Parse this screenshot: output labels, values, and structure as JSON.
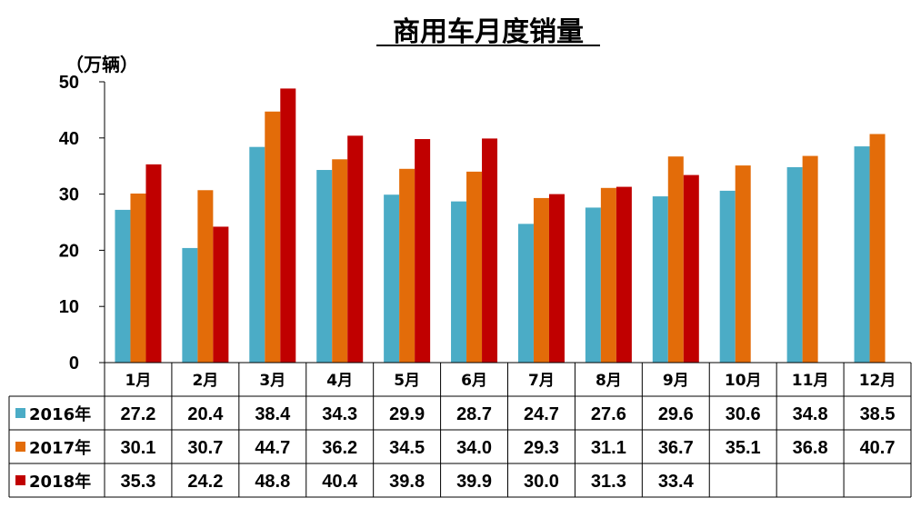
{
  "chart_data": {
    "type": "bar",
    "title": "商用车月度销量",
    "unit_label": "（万辆）",
    "categories": [
      "1月",
      "2月",
      "3月",
      "4月",
      "5月",
      "6月",
      "7月",
      "8月",
      "9月",
      "10月",
      "11月",
      "12月"
    ],
    "ylim": [
      0,
      50
    ],
    "yticks": [
      0,
      10,
      20,
      30,
      40,
      50
    ],
    "grid": false,
    "legend": "data-table-left",
    "series": [
      {
        "name": "2016年",
        "color": "#4bacc6",
        "values": [
          27.2,
          20.4,
          38.4,
          34.3,
          29.9,
          28.7,
          24.7,
          27.6,
          29.6,
          30.6,
          34.8,
          38.5
        ]
      },
      {
        "name": "2017年",
        "color": "#e36c09",
        "values": [
          30.1,
          30.7,
          44.7,
          36.2,
          34.5,
          34.0,
          29.3,
          31.1,
          36.7,
          35.1,
          36.8,
          40.7
        ]
      },
      {
        "name": "2018年",
        "color": "#c00000",
        "values": [
          35.3,
          24.2,
          48.8,
          40.4,
          39.8,
          39.9,
          30.0,
          31.3,
          33.4,
          null,
          null,
          null
        ]
      }
    ]
  }
}
